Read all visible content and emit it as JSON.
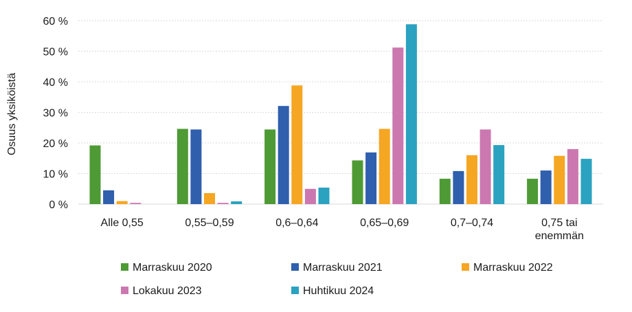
{
  "chart_data": {
    "type": "bar",
    "title": "",
    "xlabel": "",
    "ylabel": "Osuus yksiköistä",
    "ylim": [
      0,
      60
    ],
    "yticks": [
      "0 %",
      "10 %",
      "20 %",
      "30 %",
      "40 %",
      "50 %",
      "60 %"
    ],
    "grid": true,
    "legend_position": "bottom",
    "categories": [
      [
        "Alle 0,55"
      ],
      [
        "0,55–0,59"
      ],
      [
        "0,6–0,64"
      ],
      [
        "0,65–0,69"
      ],
      [
        "0,7–0,74"
      ],
      [
        "0,75 tai",
        "enemmän"
      ]
    ],
    "series": [
      {
        "name": "Marraskuu 2020",
        "color": "#4e9a35",
        "values": [
          19.2,
          24.6,
          24.4,
          14.3,
          8.3,
          8.3
        ]
      },
      {
        "name": "Marraskuu 2021",
        "color": "#2f5fad",
        "values": [
          4.5,
          24.4,
          32.1,
          16.9,
          10.8,
          11.0
        ]
      },
      {
        "name": "Marraskuu 2022",
        "color": "#f5a623",
        "values": [
          1.0,
          3.6,
          38.8,
          24.6,
          16.0,
          15.8
        ]
      },
      {
        "name": "Lokakuu 2023",
        "color": "#cc78b0",
        "values": [
          0.4,
          0.4,
          5.0,
          51.2,
          24.4,
          18.0
        ]
      },
      {
        "name": "Huhtikuu 2024",
        "color": "#2aa2c0",
        "values": [
          0.0,
          0.9,
          5.4,
          58.8,
          19.3,
          14.8
        ]
      }
    ]
  }
}
